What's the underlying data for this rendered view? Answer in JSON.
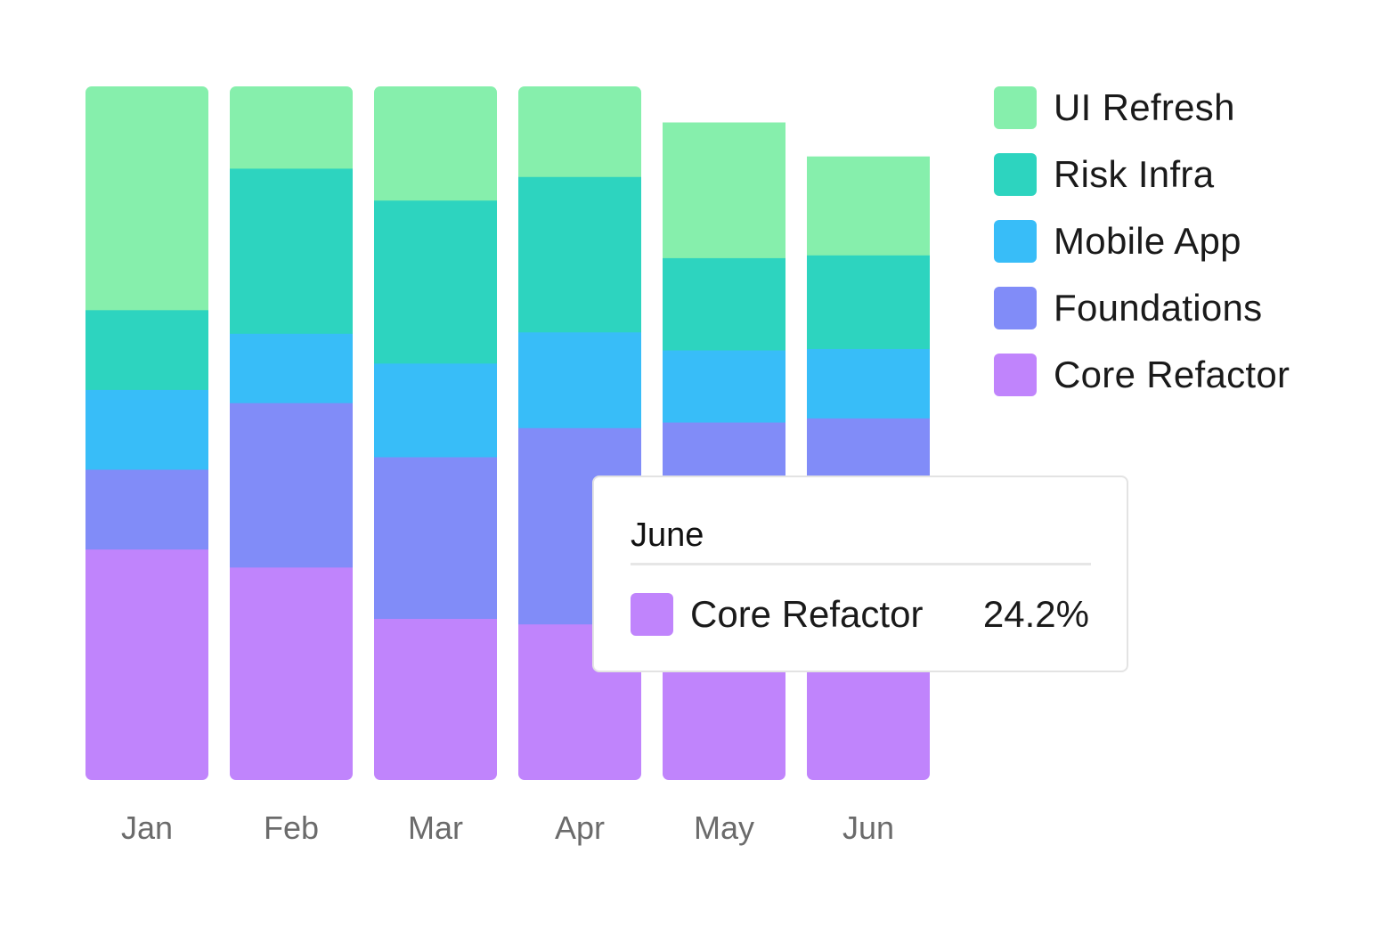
{
  "chart_data": {
    "type": "bar",
    "stacked": true,
    "normalized": true,
    "categories": [
      "Jan",
      "Feb",
      "Mar",
      "Apr",
      "May",
      "Jun"
    ],
    "series": [
      {
        "name": "Core Refactor",
        "color": "#c084fc",
        "values": [
          33.3,
          30.7,
          23.3,
          22.5,
          23.2,
          24.2
        ]
      },
      {
        "name": "Foundations",
        "color": "#818cf8",
        "values": [
          11.5,
          23.7,
          23.3,
          28.3,
          28.4,
          28.0
        ]
      },
      {
        "name": "Mobile App",
        "color": "#38bdf8",
        "values": [
          11.5,
          10.0,
          13.5,
          13.8,
          10.4,
          10.0
        ]
      },
      {
        "name": "Risk Infra",
        "color": "#2dd4bf",
        "values": [
          11.5,
          23.8,
          23.5,
          22.4,
          13.3,
          13.5
        ]
      },
      {
        "name": "UI Refresh",
        "color": "#86efac",
        "values": [
          32.2,
          11.8,
          16.4,
          13.0,
          19.5,
          14.2
        ]
      }
    ],
    "ylim": [
      0,
      100
    ],
    "grid": false,
    "legend_position": "right",
    "legend_order": [
      "UI Refresh",
      "Risk Infra",
      "Mobile App",
      "Foundations",
      "Core Refactor"
    ]
  },
  "tooltip": {
    "title": "June",
    "series_name": "Core Refactor",
    "value": "24.2%",
    "color": "#c084fc"
  }
}
